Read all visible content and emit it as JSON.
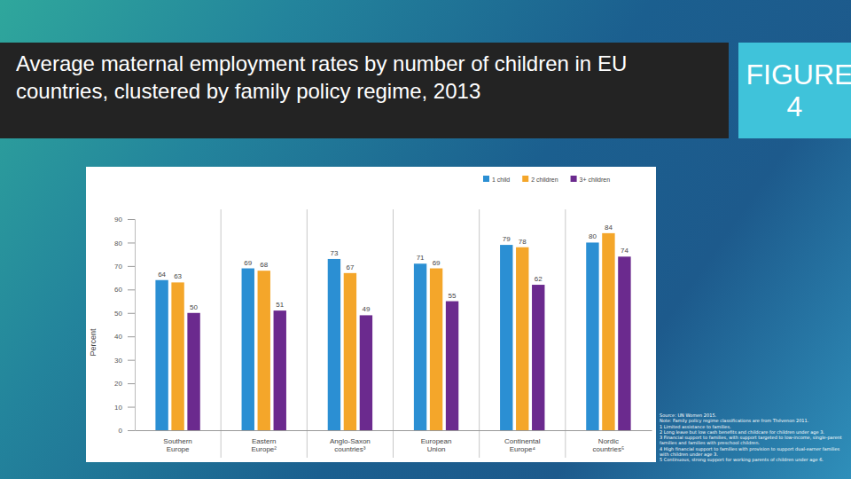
{
  "chart_data": {
    "type": "bar",
    "title": "Average maternal employment rates by number of children in EU countries, clustered by family policy regime, 2013",
    "annotations": [
      "FIGURE 4"
    ],
    "y_label": "Percent",
    "categories": [
      "Southern Europe",
      "Eastern Europe²",
      "Anglo-Saxon countries³",
      "European Union",
      "Continental Europe⁴",
      "Nordic countries⁵"
    ],
    "series": [
      {
        "name": "1 child",
        "color": "#2b8fd3",
        "values": [
          64,
          69,
          73,
          71,
          79,
          80
        ]
      },
      {
        "name": "2 children",
        "color": "#f4a62a",
        "values": [
          63,
          68,
          67,
          69,
          78,
          84
        ]
      },
      {
        "name": "3+ children",
        "color": "#6b2a8e",
        "values": [
          50,
          51,
          49,
          55,
          62,
          74
        ]
      }
    ],
    "ylim": [
      0,
      90
    ],
    "yticks": [
      0,
      10,
      20,
      30,
      40,
      50,
      60,
      70,
      80,
      90
    ],
    "grid": false,
    "legend": "top-right",
    "data_labels": true,
    "source": "Source: UN Women 2015.",
    "notes": [
      "Note: Family policy regime classifications are from Thévenon 2011.",
      "1 Limited assistance to families.",
      "2 Long leave but low cash benefits and childcare for children under age 3.",
      "3 Financial support to families, with support targeted to low-income, single-parent families and families with preschool children.",
      "4 High financial support to families with provision to support dual-earner families with children under age 3.",
      "5 Continuous, strong support for working parents of children under age 6."
    ]
  }
}
